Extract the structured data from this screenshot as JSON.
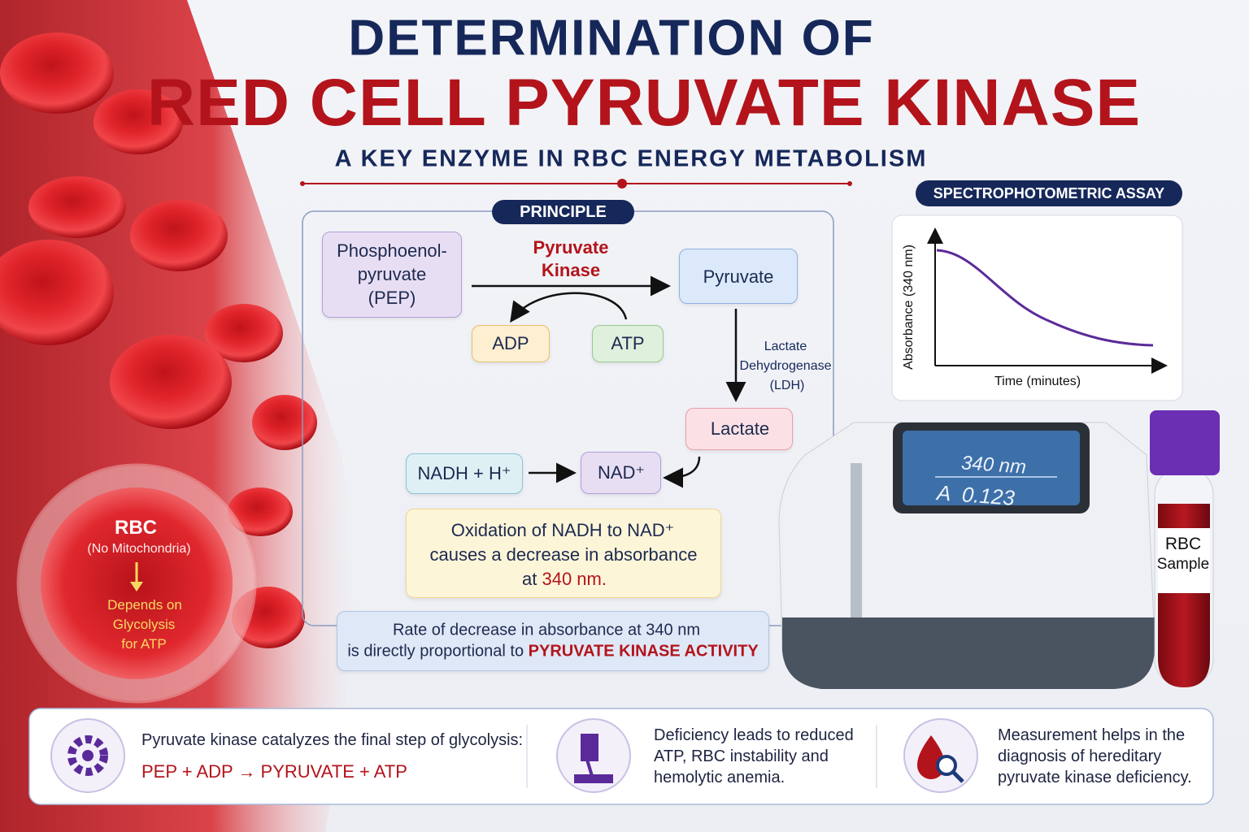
{
  "header": {
    "title_line1": "DETERMINATION OF",
    "title_line2": "RED CELL PYRUVATE KINASE",
    "subtitle": "A KEY ENZYME IN RBC ENERGY METABOLISM"
  },
  "rbc_callout": {
    "title": "RBC",
    "note": "(No Mitochondria)",
    "dependency": [
      "Depends on",
      "Glycolysis",
      "for ATP"
    ]
  },
  "principle": {
    "label": "PRINCIPLE",
    "pep": [
      "Phosphoenol-",
      "pyruvate",
      "(PEP)"
    ],
    "enzyme": [
      "Pyruvate",
      "Kinase"
    ],
    "pyruvate": "Pyruvate",
    "adp": "ADP",
    "atp": "ATP",
    "ldh": [
      "Lactate",
      "Dehydrogenase",
      "(LDH)"
    ],
    "lactate": "Lactate",
    "nadh": "NADH + H⁺",
    "nad": "NAD⁺",
    "oxidation": {
      "lines": [
        "Oxidation of NADH to NAD⁺",
        "causes a decrease in absorbance",
        "at "
      ],
      "highlight": "340 nm."
    },
    "rate": {
      "line1": "Rate of decrease in absorbance at 340 nm",
      "line2": "is directly proportional to ",
      "highlight": "PYRUVATE KINASE ACTIVITY"
    }
  },
  "assay": {
    "label": "SPECTROPHOTOMETRIC ASSAY",
    "y_label": "Absorbance (340 nm)",
    "x_label": "Time (minutes)",
    "screen": [
      "340 nm",
      "A  0.123"
    ],
    "tube": [
      "RBC",
      "Sample"
    ]
  },
  "footer": {
    "items": [
      {
        "text": [
          "Pyruvate kinase catalyzes the final step of glycolysis:"
        ],
        "equation": "PEP + ADP → PYRUVATE + ATP"
      },
      {
        "text": [
          "Deficiency leads to reduced",
          "ATP, RBC instability and",
          "hemolytic anemia."
        ]
      },
      {
        "text": [
          "Measurement helps in the",
          "diagnosis of hereditary",
          "pyruvate kinase deficiency."
        ]
      }
    ]
  }
}
